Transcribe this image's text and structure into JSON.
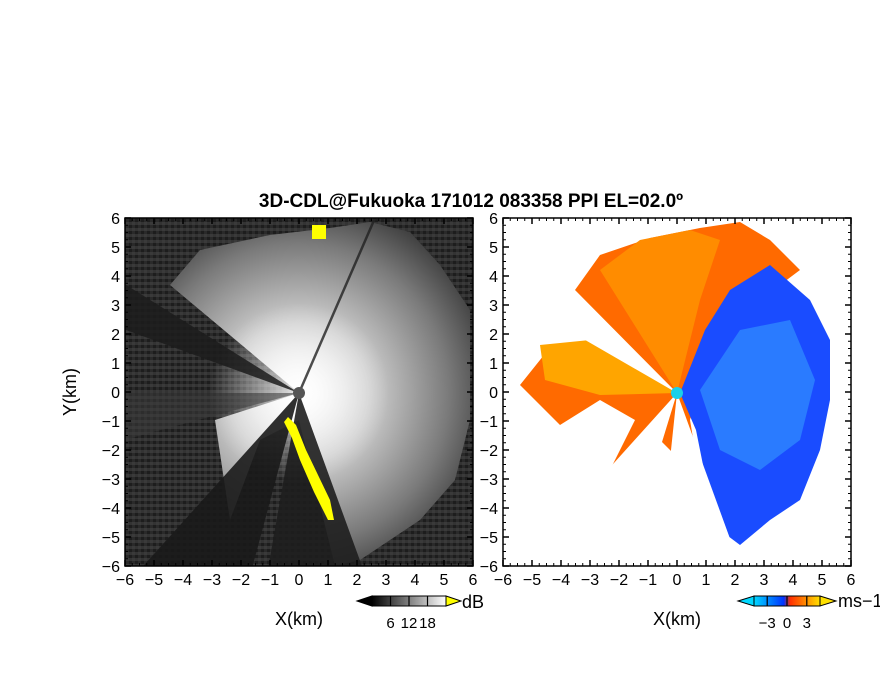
{
  "title": "3D-CDL@Fukuoka 171012 083358 PPI EL=02.0º",
  "chart_data": [
    {
      "type": "heatmap",
      "panel": "reflectivity",
      "xlabel": "X(km)",
      "ylabel": "Y(km)",
      "xlim": [
        -6,
        6
      ],
      "ylim": [
        -6,
        6
      ],
      "xticks": [
        "−6",
        "−5",
        "−4",
        "−3",
        "−2",
        "−1",
        "0",
        "1",
        "2",
        "3",
        "4",
        "5",
        "6"
      ],
      "yticks": [
        "6",
        "5",
        "4",
        "3",
        "2",
        "1",
        "0",
        "−1",
        "−2",
        "−3",
        "−4",
        "−5",
        "−6"
      ],
      "colorbar": {
        "unit": "dB",
        "ticks": [
          "6",
          "12",
          "18"
        ],
        "tick_values": [
          6,
          12,
          18
        ],
        "range": [
          0,
          24
        ],
        "colors": [
          "#000000",
          "#ffffff"
        ],
        "overflow_color": "#ffff00"
      },
      "radar_center": [
        0,
        0
      ],
      "blocked_sectors_deg": [
        [
          115,
          128
        ],
        [
          130,
          147
        ],
        [
          150,
          168
        ],
        [
          228,
          262
        ]
      ]
    },
    {
      "type": "heatmap",
      "panel": "doppler-velocity",
      "xlabel": "X(km)",
      "xlim": [
        -6,
        6
      ],
      "ylim": [
        -6,
        6
      ],
      "xticks": [
        "−6",
        "−5",
        "−4",
        "−3",
        "−2",
        "−1",
        "0",
        "1",
        "2",
        "3",
        "4",
        "5",
        "6"
      ],
      "colorbar": {
        "unit": "ms−1",
        "ticks": [
          "−3",
          "0",
          "3"
        ],
        "tick_values": [
          -3,
          0,
          3
        ],
        "range": [
          -5,
          5
        ],
        "colors": [
          "#00d8ff",
          "#0033ff",
          "#ff3000",
          "#ffe000"
        ]
      },
      "radar_center": [
        0,
        0
      ],
      "approaching_color": "#1a4cff",
      "receding_color": "#ff5a00"
    }
  ]
}
